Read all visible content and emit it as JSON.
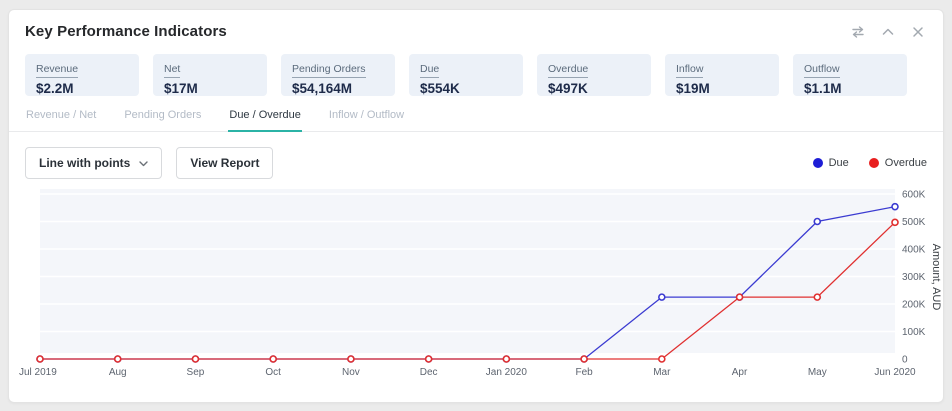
{
  "header": {
    "title": "Key Performance Indicators"
  },
  "kpis": [
    {
      "label": "Revenue",
      "value": "$2.2M"
    },
    {
      "label": "Net",
      "value": "$17M"
    },
    {
      "label": "Pending Orders",
      "value": "$54,164M"
    },
    {
      "label": "Due",
      "value": "$554K"
    },
    {
      "label": "Overdue",
      "value": "$497K"
    },
    {
      "label": "Inflow",
      "value": "$19M"
    },
    {
      "label": "Outflow",
      "value": "$1.1M"
    }
  ],
  "tabs": [
    {
      "label": "Revenue / Net",
      "active": false
    },
    {
      "label": "Pending Orders",
      "active": false
    },
    {
      "label": "Due / Overdue",
      "active": true
    },
    {
      "label": "Inflow / Outflow",
      "active": false
    }
  ],
  "controls": {
    "chart_type_selected": "Line with points",
    "view_report_label": "View Report"
  },
  "legend": [
    {
      "label": "Due",
      "color": "#1d1dd6"
    },
    {
      "label": "Overdue",
      "color": "#e81f1f"
    }
  ],
  "colors": {
    "tab_accent": "#2bb3a6",
    "plot_background": "#f4f6fa",
    "gridline": "#ffffff",
    "axis_text": "#5d646f"
  },
  "chart_data": {
    "type": "line",
    "x": [
      "Jul 2019",
      "Aug",
      "Sep",
      "Oct",
      "Nov",
      "Dec",
      "Jan 2020",
      "Feb",
      "Mar",
      "Apr",
      "May",
      "Jun 2020"
    ],
    "series": [
      {
        "name": "Due",
        "color": "#3b3bd1",
        "values": [
          0,
          0,
          0,
          0,
          0,
          0,
          0,
          0,
          225000,
          225000,
          500000,
          554000
        ]
      },
      {
        "name": "Overdue",
        "color": "#e03030",
        "values": [
          0,
          0,
          0,
          0,
          0,
          0,
          0,
          0,
          0,
          225000,
          225000,
          497000
        ]
      }
    ],
    "title": "",
    "xlabel": "",
    "ylabel": "Amount, AUD",
    "ylim": [
      0,
      620000
    ],
    "ytick_step": 100000,
    "yticks": [
      "0",
      "100K",
      "200K",
      "300K",
      "400K",
      "500K",
      "600K"
    ],
    "grid": true,
    "marker": "hollow-circle",
    "legend_position": "top-right"
  }
}
